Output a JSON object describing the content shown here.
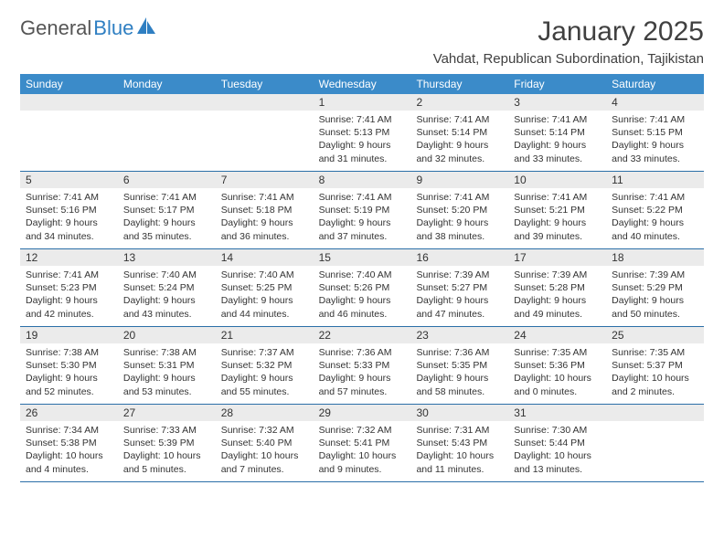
{
  "brand": {
    "text1": "General",
    "text2": "Blue",
    "logo_color": "#2f7fc2"
  },
  "title": "January 2025",
  "location": "Vahdat, Republican Subordination, Tajikistan",
  "colors": {
    "header_bg": "#3b8bc9",
    "header_text": "#ffffff",
    "daynum_bg": "#ebebeb",
    "week_divider": "#2b6fa8",
    "body_text": "#333333",
    "page_bg": "#ffffff"
  },
  "typography": {
    "title_fontsize": 30,
    "location_fontsize": 15,
    "dayheader_fontsize": 12,
    "daynum_fontsize": 12,
    "detail_fontsize": 10.5
  },
  "day_headers": [
    "Sunday",
    "Monday",
    "Tuesday",
    "Wednesday",
    "Thursday",
    "Friday",
    "Saturday"
  ],
  "weeks": [
    [
      {
        "num": "",
        "sunrise": "",
        "sunset": "",
        "daylight": ""
      },
      {
        "num": "",
        "sunrise": "",
        "sunset": "",
        "daylight": ""
      },
      {
        "num": "",
        "sunrise": "",
        "sunset": "",
        "daylight": ""
      },
      {
        "num": "1",
        "sunrise": "Sunrise: 7:41 AM",
        "sunset": "Sunset: 5:13 PM",
        "daylight": "Daylight: 9 hours and 31 minutes."
      },
      {
        "num": "2",
        "sunrise": "Sunrise: 7:41 AM",
        "sunset": "Sunset: 5:14 PM",
        "daylight": "Daylight: 9 hours and 32 minutes."
      },
      {
        "num": "3",
        "sunrise": "Sunrise: 7:41 AM",
        "sunset": "Sunset: 5:14 PM",
        "daylight": "Daylight: 9 hours and 33 minutes."
      },
      {
        "num": "4",
        "sunrise": "Sunrise: 7:41 AM",
        "sunset": "Sunset: 5:15 PM",
        "daylight": "Daylight: 9 hours and 33 minutes."
      }
    ],
    [
      {
        "num": "5",
        "sunrise": "Sunrise: 7:41 AM",
        "sunset": "Sunset: 5:16 PM",
        "daylight": "Daylight: 9 hours and 34 minutes."
      },
      {
        "num": "6",
        "sunrise": "Sunrise: 7:41 AM",
        "sunset": "Sunset: 5:17 PM",
        "daylight": "Daylight: 9 hours and 35 minutes."
      },
      {
        "num": "7",
        "sunrise": "Sunrise: 7:41 AM",
        "sunset": "Sunset: 5:18 PM",
        "daylight": "Daylight: 9 hours and 36 minutes."
      },
      {
        "num": "8",
        "sunrise": "Sunrise: 7:41 AM",
        "sunset": "Sunset: 5:19 PM",
        "daylight": "Daylight: 9 hours and 37 minutes."
      },
      {
        "num": "9",
        "sunrise": "Sunrise: 7:41 AM",
        "sunset": "Sunset: 5:20 PM",
        "daylight": "Daylight: 9 hours and 38 minutes."
      },
      {
        "num": "10",
        "sunrise": "Sunrise: 7:41 AM",
        "sunset": "Sunset: 5:21 PM",
        "daylight": "Daylight: 9 hours and 39 minutes."
      },
      {
        "num": "11",
        "sunrise": "Sunrise: 7:41 AM",
        "sunset": "Sunset: 5:22 PM",
        "daylight": "Daylight: 9 hours and 40 minutes."
      }
    ],
    [
      {
        "num": "12",
        "sunrise": "Sunrise: 7:41 AM",
        "sunset": "Sunset: 5:23 PM",
        "daylight": "Daylight: 9 hours and 42 minutes."
      },
      {
        "num": "13",
        "sunrise": "Sunrise: 7:40 AM",
        "sunset": "Sunset: 5:24 PM",
        "daylight": "Daylight: 9 hours and 43 minutes."
      },
      {
        "num": "14",
        "sunrise": "Sunrise: 7:40 AM",
        "sunset": "Sunset: 5:25 PM",
        "daylight": "Daylight: 9 hours and 44 minutes."
      },
      {
        "num": "15",
        "sunrise": "Sunrise: 7:40 AM",
        "sunset": "Sunset: 5:26 PM",
        "daylight": "Daylight: 9 hours and 46 minutes."
      },
      {
        "num": "16",
        "sunrise": "Sunrise: 7:39 AM",
        "sunset": "Sunset: 5:27 PM",
        "daylight": "Daylight: 9 hours and 47 minutes."
      },
      {
        "num": "17",
        "sunrise": "Sunrise: 7:39 AM",
        "sunset": "Sunset: 5:28 PM",
        "daylight": "Daylight: 9 hours and 49 minutes."
      },
      {
        "num": "18",
        "sunrise": "Sunrise: 7:39 AM",
        "sunset": "Sunset: 5:29 PM",
        "daylight": "Daylight: 9 hours and 50 minutes."
      }
    ],
    [
      {
        "num": "19",
        "sunrise": "Sunrise: 7:38 AM",
        "sunset": "Sunset: 5:30 PM",
        "daylight": "Daylight: 9 hours and 52 minutes."
      },
      {
        "num": "20",
        "sunrise": "Sunrise: 7:38 AM",
        "sunset": "Sunset: 5:31 PM",
        "daylight": "Daylight: 9 hours and 53 minutes."
      },
      {
        "num": "21",
        "sunrise": "Sunrise: 7:37 AM",
        "sunset": "Sunset: 5:32 PM",
        "daylight": "Daylight: 9 hours and 55 minutes."
      },
      {
        "num": "22",
        "sunrise": "Sunrise: 7:36 AM",
        "sunset": "Sunset: 5:33 PM",
        "daylight": "Daylight: 9 hours and 57 minutes."
      },
      {
        "num": "23",
        "sunrise": "Sunrise: 7:36 AM",
        "sunset": "Sunset: 5:35 PM",
        "daylight": "Daylight: 9 hours and 58 minutes."
      },
      {
        "num": "24",
        "sunrise": "Sunrise: 7:35 AM",
        "sunset": "Sunset: 5:36 PM",
        "daylight": "Daylight: 10 hours and 0 minutes."
      },
      {
        "num": "25",
        "sunrise": "Sunrise: 7:35 AM",
        "sunset": "Sunset: 5:37 PM",
        "daylight": "Daylight: 10 hours and 2 minutes."
      }
    ],
    [
      {
        "num": "26",
        "sunrise": "Sunrise: 7:34 AM",
        "sunset": "Sunset: 5:38 PM",
        "daylight": "Daylight: 10 hours and 4 minutes."
      },
      {
        "num": "27",
        "sunrise": "Sunrise: 7:33 AM",
        "sunset": "Sunset: 5:39 PM",
        "daylight": "Daylight: 10 hours and 5 minutes."
      },
      {
        "num": "28",
        "sunrise": "Sunrise: 7:32 AM",
        "sunset": "Sunset: 5:40 PM",
        "daylight": "Daylight: 10 hours and 7 minutes."
      },
      {
        "num": "29",
        "sunrise": "Sunrise: 7:32 AM",
        "sunset": "Sunset: 5:41 PM",
        "daylight": "Daylight: 10 hours and 9 minutes."
      },
      {
        "num": "30",
        "sunrise": "Sunrise: 7:31 AM",
        "sunset": "Sunset: 5:43 PM",
        "daylight": "Daylight: 10 hours and 11 minutes."
      },
      {
        "num": "31",
        "sunrise": "Sunrise: 7:30 AM",
        "sunset": "Sunset: 5:44 PM",
        "daylight": "Daylight: 10 hours and 13 minutes."
      },
      {
        "num": "",
        "sunrise": "",
        "sunset": "",
        "daylight": ""
      }
    ]
  ]
}
